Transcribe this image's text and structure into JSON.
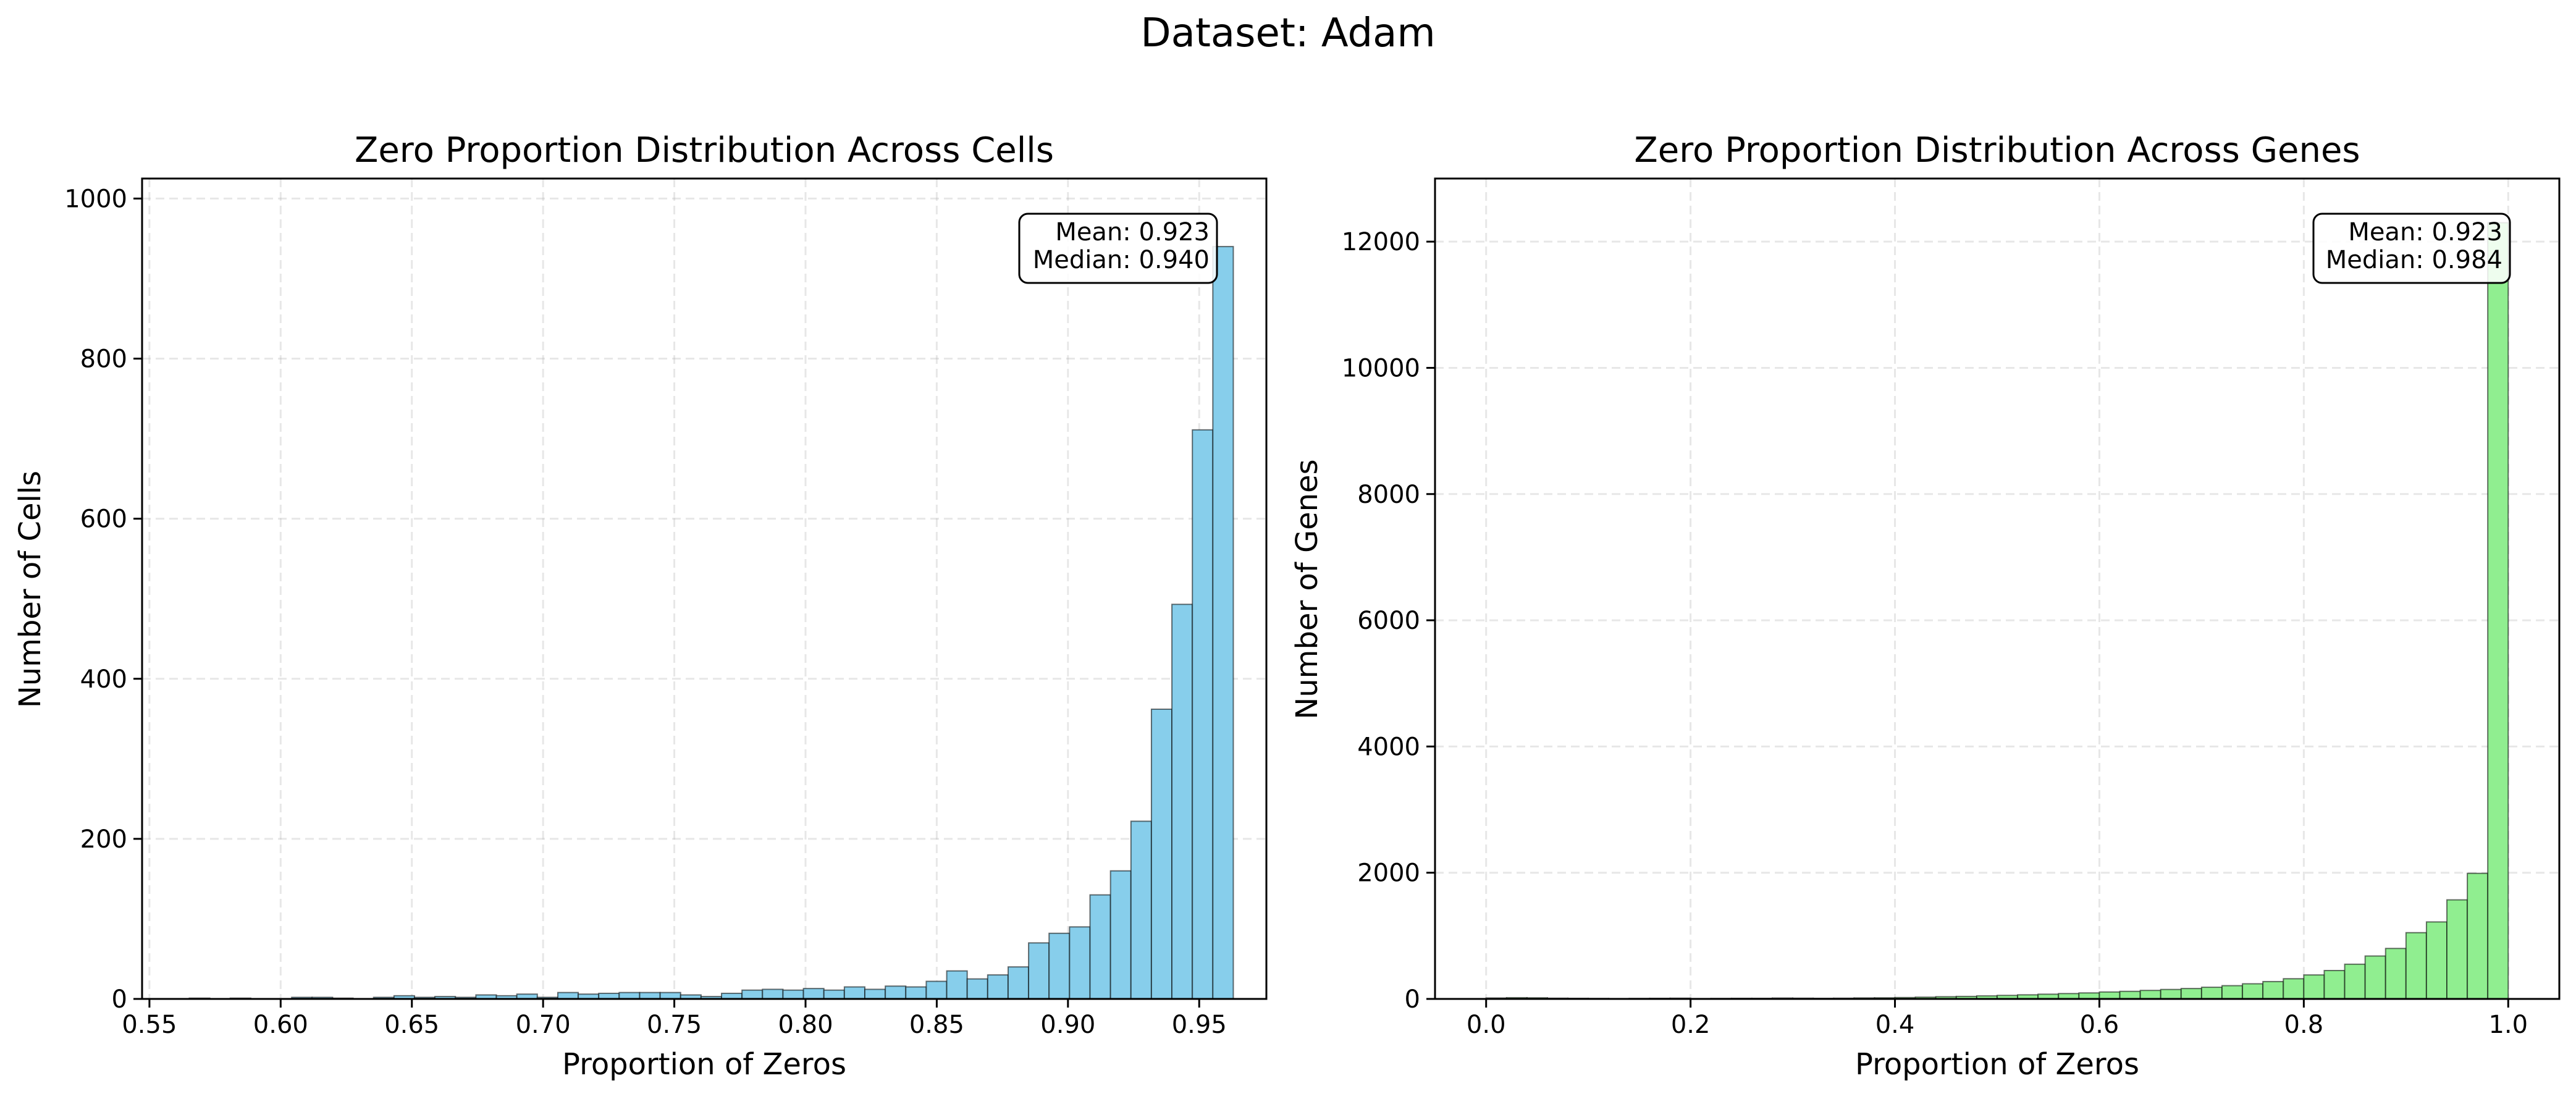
{
  "figure": {
    "suptitle": "Dataset: Adam"
  },
  "chart_data": [
    {
      "type": "bar",
      "title": "Zero Proportion Distribution Across Cells",
      "xlabel": "Proportion of Zeros",
      "ylabel": "Number of Cells",
      "xlim": [
        0.5472,
        0.9756
      ],
      "ylim": [
        0,
        1025
      ],
      "xticks": [
        0.55,
        0.6,
        0.65,
        0.7,
        0.75,
        0.8,
        0.85,
        0.9,
        0.95
      ],
      "xtick_labels": [
        "0.55",
        "0.60",
        "0.65",
        "0.70",
        "0.75",
        "0.80",
        "0.85",
        "0.90",
        "0.95"
      ],
      "yticks": [
        0,
        200,
        400,
        600,
        800,
        1000
      ],
      "ytick_labels": [
        "0",
        "200",
        "400",
        "600",
        "800",
        "1000"
      ],
      "bin_start": 0.5652,
      "bin_width": 0.0078,
      "values": [
        1,
        0,
        1,
        0,
        0,
        2,
        2,
        1,
        0,
        2,
        4,
        2,
        3,
        2,
        5,
        4,
        6,
        2,
        8,
        6,
        7,
        8,
        8,
        8,
        5,
        3,
        7,
        11,
        12,
        11,
        13,
        11,
        15,
        12,
        16,
        15,
        22,
        35,
        25,
        30,
        40,
        70,
        82,
        90,
        130,
        160,
        222,
        362,
        493,
        711,
        940
      ],
      "bar_color": "#87ceeb",
      "grid": true,
      "stats_box": {
        "mean_text": "Mean: 0.923",
        "median_text": "Median: 0.940",
        "placement": "upper right"
      }
    },
    {
      "type": "bar",
      "title": "Zero Proportion Distribution Across Genes",
      "xlabel": "Proportion of Zeros",
      "ylabel": "Number of Genes",
      "xlim": [
        -0.05,
        1.05
      ],
      "ylim": [
        0,
        13000
      ],
      "xticks": [
        0.0,
        0.2,
        0.4,
        0.6,
        0.8,
        1.0
      ],
      "xtick_labels": [
        "0.0",
        "0.2",
        "0.4",
        "0.6",
        "0.8",
        "1.0"
      ],
      "yticks": [
        0,
        2000,
        4000,
        6000,
        8000,
        10000,
        12000
      ],
      "ytick_labels": [
        "0",
        "2000",
        "4000",
        "6000",
        "8000",
        "10000",
        "12000"
      ],
      "bin_start": 0.0,
      "bin_width": 0.02,
      "values": [
        15,
        20,
        18,
        12,
        10,
        8,
        6,
        8,
        10,
        12,
        6,
        8,
        10,
        10,
        14,
        12,
        10,
        12,
        16,
        18,
        22,
        28,
        35,
        40,
        48,
        56,
        65,
        75,
        85,
        95,
        110,
        120,
        135,
        150,
        165,
        185,
        210,
        240,
        275,
        320,
        380,
        450,
        550,
        680,
        800,
        1050,
        1220,
        1570,
        1990,
        12300
      ],
      "bar_color": "#90ee90",
      "grid": true,
      "stats_box": {
        "mean_text": "Mean: 0.923",
        "median_text": "Median: 0.984",
        "placement": "upper right"
      }
    }
  ]
}
